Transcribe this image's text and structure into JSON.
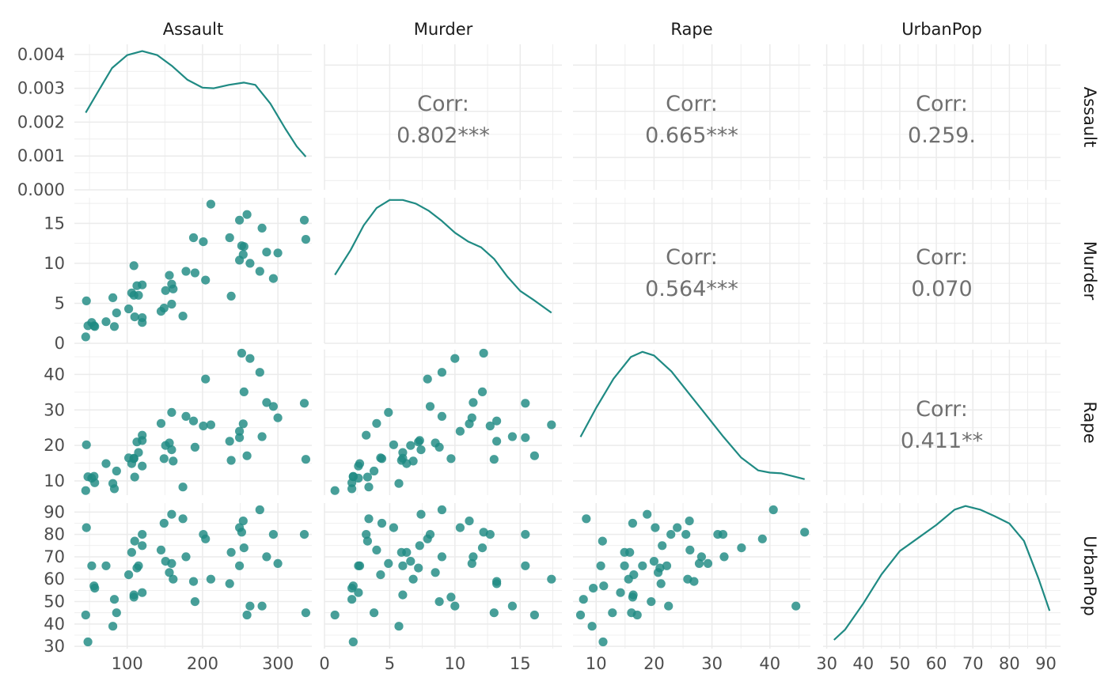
{
  "chart_data": {
    "type": "scatter-matrix",
    "variables": [
      "Assault",
      "Murder",
      "Rape",
      "UrbanPop"
    ],
    "colors": {
      "point": "#1f8a83",
      "line": "#1f8a83",
      "text": "#707070",
      "grid": "#ebebeb"
    },
    "axes": {
      "Assault": {
        "lim": [
          30,
          345
        ],
        "ticks": [
          100,
          200,
          300
        ],
        "tick_labels": [
          "100",
          "200",
          "300"
        ],
        "minor": [
          50,
          150,
          250
        ]
      },
      "Murder": {
        "lim": [
          0,
          18.2
        ],
        "ticks": [
          0,
          5,
          10,
          15
        ],
        "tick_labels": [
          "0",
          "5",
          "10",
          "15"
        ],
        "minor": [
          2.5,
          7.5,
          12.5,
          17.5
        ]
      },
      "Rape": {
        "lim": [
          6,
          47
        ],
        "ticks": [
          10,
          20,
          30,
          40
        ],
        "tick_labels": [
          "10",
          "20",
          "30",
          "40"
        ],
        "minor": [
          15,
          25,
          35,
          45
        ]
      },
      "UrbanPop": {
        "lim": [
          29,
          94
        ],
        "ticks": [
          30,
          40,
          50,
          60,
          70,
          80,
          90
        ],
        "tick_labels": [
          "30",
          "40",
          "50",
          "60",
          "70",
          "80",
          "90"
        ],
        "minor": [
          35,
          45,
          55,
          65,
          75,
          85
        ]
      }
    },
    "density_axis": {
      "lim": [
        0,
        0.0043
      ],
      "ticks": [
        0,
        0.001,
        0.002,
        0.003,
        0.004
      ],
      "tick_labels": [
        "0.000",
        "0.001",
        "0.002",
        "0.003",
        "0.004"
      ]
    },
    "correlations": [
      {
        "row": "Assault",
        "col": "Murder",
        "label": "Corr:",
        "value": "0.802***"
      },
      {
        "row": "Assault",
        "col": "Rape",
        "label": "Corr:",
        "value": "0.665***"
      },
      {
        "row": "Assault",
        "col": "UrbanPop",
        "label": "Corr:",
        "value": "0.259."
      },
      {
        "row": "Murder",
        "col": "Rape",
        "label": "Corr:",
        "value": "0.564***"
      },
      {
        "row": "Murder",
        "col": "UrbanPop",
        "label": "Corr:",
        "value": "0.070"
      },
      {
        "row": "Rape",
        "col": "UrbanPop",
        "label": "Corr:",
        "value": "0.411**"
      }
    ],
    "densities": {
      "Assault": [
        [
          45,
          0.00228
        ],
        [
          60,
          0.00285
        ],
        [
          80,
          0.0036
        ],
        [
          100,
          0.00398
        ],
        [
          120,
          0.0041
        ],
        [
          140,
          0.00398
        ],
        [
          160,
          0.00365
        ],
        [
          180,
          0.00325
        ],
        [
          200,
          0.00302
        ],
        [
          215,
          0.003
        ],
        [
          235,
          0.0031
        ],
        [
          255,
          0.00317
        ],
        [
          270,
          0.0031
        ],
        [
          290,
          0.00255
        ],
        [
          310,
          0.0018
        ],
        [
          325,
          0.00128
        ],
        [
          337,
          0.00098
        ]
      ],
      "Murder": [
        [
          0.8,
          0.47
        ],
        [
          2,
          0.64
        ],
        [
          3,
          0.81
        ],
        [
          4,
          0.93
        ],
        [
          5,
          0.985
        ],
        [
          6,
          0.985
        ],
        [
          7,
          0.96
        ],
        [
          8,
          0.91
        ],
        [
          9,
          0.84
        ],
        [
          10,
          0.76
        ],
        [
          11,
          0.7
        ],
        [
          12,
          0.66
        ],
        [
          13,
          0.58
        ],
        [
          14,
          0.46
        ],
        [
          15,
          0.36
        ],
        [
          16,
          0.3
        ],
        [
          17.4,
          0.21
        ]
      ],
      "Rape": [
        [
          7.3,
          0.4
        ],
        [
          10,
          0.6
        ],
        [
          13,
          0.8
        ],
        [
          16,
          0.95
        ],
        [
          18,
          0.985
        ],
        [
          20,
          0.96
        ],
        [
          23,
          0.85
        ],
        [
          26,
          0.7
        ],
        [
          29,
          0.55
        ],
        [
          32,
          0.4
        ],
        [
          35,
          0.26
        ],
        [
          38,
          0.17
        ],
        [
          40,
          0.155
        ],
        [
          42,
          0.15
        ],
        [
          44,
          0.13
        ],
        [
          46,
          0.11
        ]
      ],
      "UrbanPop": [
        [
          32,
          0.06
        ],
        [
          35,
          0.13
        ],
        [
          40,
          0.31
        ],
        [
          45,
          0.51
        ],
        [
          50,
          0.67
        ],
        [
          55,
          0.76
        ],
        [
          60,
          0.85
        ],
        [
          65,
          0.955
        ],
        [
          68,
          0.98
        ],
        [
          72,
          0.955
        ],
        [
          76,
          0.91
        ],
        [
          80,
          0.86
        ],
        [
          84,
          0.74
        ],
        [
          88,
          0.48
        ],
        [
          91,
          0.26
        ]
      ]
    },
    "observations": {
      "Assault": [
        236,
        263,
        294,
        190,
        276,
        204,
        110,
        238,
        335,
        211,
        46,
        120,
        249,
        113,
        56,
        115,
        109,
        249,
        83,
        300,
        149,
        255,
        72,
        259,
        178,
        109,
        102,
        252,
        57,
        159,
        285,
        254,
        337,
        45,
        120,
        151,
        159,
        106,
        174,
        279,
        86,
        188,
        201,
        120,
        48,
        156,
        145,
        81,
        53,
        161
      ],
      "Murder": [
        13.2,
        10,
        8.1,
        8.8,
        9,
        7.9,
        3.3,
        5.9,
        15.4,
        17.4,
        5.3,
        2.6,
        10.4,
        7.2,
        2.2,
        6,
        9.7,
        15.4,
        2.1,
        11.3,
        4.4,
        12.1,
        2.7,
        16.1,
        9,
        6,
        4.3,
        12.2,
        2.1,
        7.4,
        11.4,
        11.1,
        13,
        0.8,
        7.3,
        6.6,
        4.9,
        6.3,
        3.4,
        14.4,
        3.8,
        13.2,
        12.7,
        3.2,
        2.2,
        8.5,
        4,
        5.7,
        2.6,
        6.8
      ],
      "Rape": [
        21.2,
        44.5,
        31,
        19.5,
        40.6,
        38.7,
        11.1,
        15.8,
        31.9,
        25.8,
        20.2,
        14.2,
        24,
        21,
        11.3,
        18,
        16.3,
        22.2,
        7.8,
        27.8,
        16.3,
        35.1,
        14.9,
        17.1,
        28.2,
        16.4,
        16.5,
        46,
        9.5,
        18.8,
        32.1,
        26.1,
        16.1,
        7.3,
        21.4,
        20,
        29.3,
        14.9,
        8.3,
        22.5,
        12.8,
        26.9,
        25.5,
        22.9,
        11.2,
        20.7,
        26.2,
        9.3,
        10.8,
        15.6
      ],
      "UrbanPop": [
        58,
        48,
        80,
        50,
        91,
        78,
        77,
        72,
        80,
        60,
        83,
        54,
        83,
        65,
        57,
        66,
        52,
        66,
        51,
        67,
        85,
        74,
        66,
        44,
        70,
        53,
        62,
        81,
        56,
        89,
        70,
        86,
        45,
        44,
        75,
        68,
        67,
        72,
        87,
        48,
        45,
        59,
        80,
        80,
        32,
        63,
        73,
        39,
        66,
        60
      ]
    }
  }
}
